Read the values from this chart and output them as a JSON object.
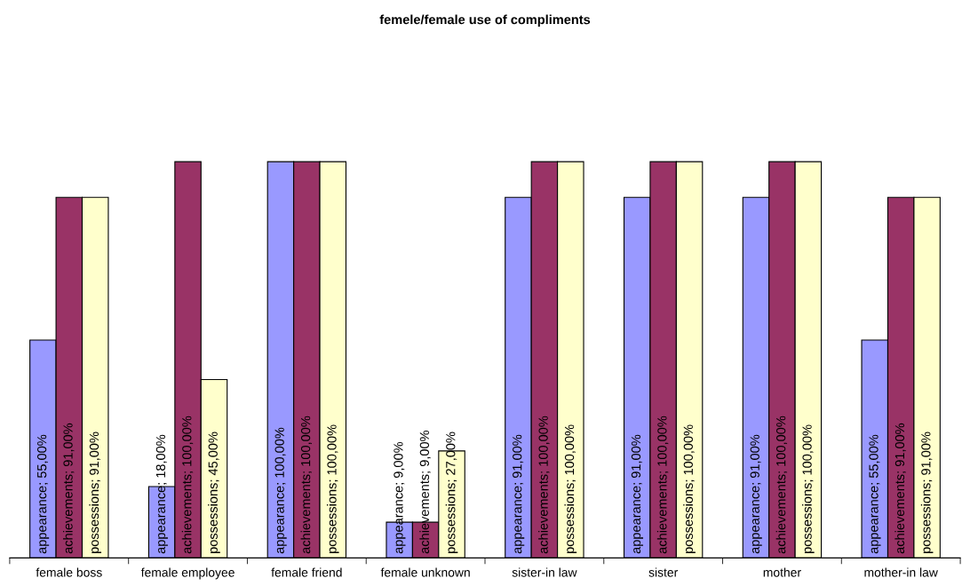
{
  "chart_data": {
    "type": "bar",
    "title": "femele/female use of compliments",
    "categories": [
      "female boss",
      "female employee",
      "female friend",
      "female unknown",
      "sister-in law",
      "sister",
      "mother",
      "mother-in law"
    ],
    "series": [
      {
        "color": "#9999ff",
        "values": [
          55,
          18,
          100,
          9,
          91,
          91,
          91,
          55
        ],
        "value_labels": [
          "appearance; 55,00%",
          "appearance; 18,00%",
          "appearance; 100,00%",
          "appearance; 9,00%",
          "appearance; 91,00%",
          "appearance; 91,00%",
          "appearance; 91,00%",
          "appearance; 55,00%"
        ]
      },
      {
        "color": "#993366",
        "values": [
          91,
          100,
          100,
          9,
          100,
          100,
          100,
          91
        ],
        "value_labels": [
          "achievements; 91,00%",
          "achievements; 100,00%",
          "achievements; 100,00%",
          "achievements; 9,00%",
          "achievements; 100,00%",
          "achievements; 100,00%",
          "achievements; 100,00%",
          "achievements; 91,00%"
        ]
      },
      {
        "color": "#ffffcc",
        "values": [
          91,
          45,
          100,
          27,
          100,
          100,
          100,
          91
        ],
        "value_labels": [
          "possessions; 91,00%",
          "possessions; 45,00%",
          "possessions; 100,00%",
          "possessions; 27,00%",
          "possessions; 100,00%",
          "possessions; 100,00%",
          "possessions; 100,00%",
          "possessions; 91,00%"
        ]
      }
    ],
    "grid": false,
    "legend": false
  }
}
